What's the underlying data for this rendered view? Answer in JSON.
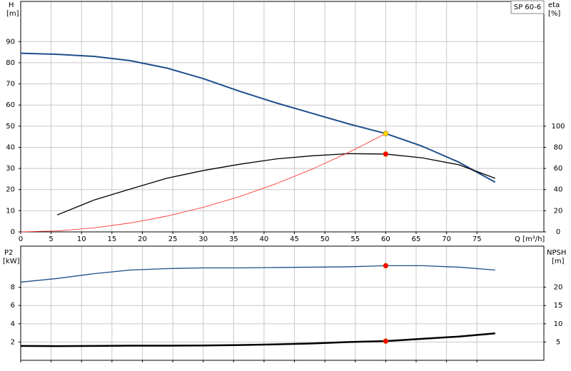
{
  "chart_data": [
    {
      "type": "line",
      "label": "SP 60-6",
      "xlabel": "Q [m³/h]",
      "ylabel": "H",
      "yunit": "[m]",
      "y2label": "eta",
      "y2unit": "[%]",
      "xlim": [
        0,
        86
      ],
      "xticks": [
        0,
        5,
        10,
        15,
        20,
        25,
        30,
        35,
        40,
        45,
        50,
        55,
        60,
        65,
        70,
        75
      ],
      "show_xtick_labels": true,
      "ylim": [
        0,
        109
      ],
      "yticks": [
        0,
        10,
        20,
        30,
        40,
        50,
        60,
        70,
        80,
        90
      ],
      "y2lim": [
        0,
        218
      ],
      "y2ticks": [
        0,
        20,
        40,
        60,
        80,
        100
      ],
      "grid": true,
      "series": [
        {
          "color": "#1f4e8c",
          "width": 2,
          "x": [
            0,
            6,
            12,
            18,
            24,
            30,
            36,
            42,
            48,
            54,
            60,
            66,
            72,
            78
          ],
          "values": [
            84.5,
            84,
            83,
            81,
            77.5,
            72.5,
            66.5,
            61,
            56,
            51,
            46.5,
            40.5,
            33,
            23.5
          ]
        },
        {
          "color": "#000000",
          "width": 1.3,
          "axis": "y2",
          "x": [
            6,
            12,
            18,
            24,
            30,
            36,
            42,
            48,
            54,
            60,
            66,
            72,
            78
          ],
          "values": [
            16,
            30,
            40.5,
            50.7,
            58,
            64,
            69,
            72,
            74,
            73.6,
            70,
            63.5,
            50.7
          ]
        },
        {
          "color": "#ff2020",
          "width": 0.8,
          "x": [
            0,
            6,
            12,
            18,
            24,
            30,
            36,
            42,
            48,
            54,
            60
          ],
          "values": [
            0,
            0.47,
            1.86,
            4.19,
            7.44,
            11.6,
            16.7,
            22.8,
            29.8,
            37.7,
            46.5
          ]
        }
      ],
      "points": [
        {
          "x": 60,
          "y": 46.5,
          "color": "#ffd700"
        },
        {
          "x": 60,
          "y": 73.6,
          "axis": "y2",
          "color": "#ff0000"
        }
      ]
    },
    {
      "type": "line",
      "ylabel": "P2",
      "yunit": "[kW]",
      "y2label": "NPSH",
      "y2unit": "[m]",
      "xlim": [
        0,
        86
      ],
      "xticks": [
        0,
        5,
        10,
        15,
        20,
        25,
        30,
        35,
        40,
        45,
        50,
        55,
        60,
        65,
        70,
        75
      ],
      "show_xtick_labels": false,
      "ylim": [
        0,
        12.5
      ],
      "yticks": [
        2,
        4,
        6,
        8
      ],
      "y2lim": [
        0,
        31.25
      ],
      "y2ticks": [
        5,
        10,
        15,
        20
      ],
      "grid": true,
      "series": [
        {
          "color": "#1f4e8c",
          "width": 1.3,
          "axis": "y2",
          "x": [
            0,
            6,
            12,
            18,
            24,
            30,
            36,
            42,
            48,
            54,
            60,
            66,
            72,
            78
          ],
          "values": [
            21.4,
            22.4,
            23.7,
            24.7,
            25.1,
            25.3,
            25.3,
            25.4,
            25.5,
            25.6,
            25.9,
            25.9,
            25.5,
            24.7
          ]
        },
        {
          "color": "#000000",
          "width": 2.5,
          "x": [
            0,
            6,
            12,
            18,
            24,
            30,
            36,
            42,
            48,
            54,
            60,
            66,
            72,
            78
          ],
          "values": [
            1.57,
            1.55,
            1.57,
            1.6,
            1.6,
            1.62,
            1.67,
            1.75,
            1.85,
            2.0,
            2.1,
            2.35,
            2.6,
            2.95
          ]
        }
      ],
      "points": [
        {
          "x": 60,
          "y": 25.9,
          "axis": "y2",
          "color": "#ff0000"
        },
        {
          "x": 60,
          "y": 2.1,
          "color": "#ff0000"
        }
      ]
    }
  ]
}
